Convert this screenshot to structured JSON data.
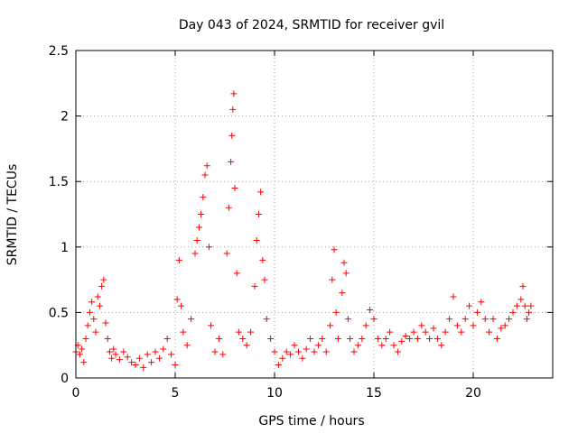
{
  "chart_data": {
    "type": "scatter",
    "title": "Day 043 of 2024, SRMTID for receiver gvil",
    "xlabel": "GPS time / hours",
    "ylabel": "SRMTID / TECUs",
    "xlim": [
      0,
      24
    ],
    "ylim": [
      0,
      2.5
    ],
    "xticks": [
      0,
      5,
      10,
      15,
      20
    ],
    "yticks": [
      0,
      0.5,
      1,
      1.5,
      2,
      2.5
    ],
    "xtick_labels": [
      "0",
      "5",
      "10",
      "15",
      "20"
    ],
    "ytick_labels": [
      "0",
      "0.5",
      "1",
      "1.5",
      "2",
      "2.5"
    ],
    "grid": true,
    "marker": "+",
    "color": "#ff0000",
    "series": [
      {
        "name": "SRMTID",
        "points": [
          [
            0.0,
            0.2
          ],
          [
            0.1,
            0.25
          ],
          [
            0.2,
            0.18
          ],
          [
            0.3,
            0.22
          ],
          [
            0.4,
            0.12
          ],
          [
            0.5,
            0.3
          ],
          [
            0.6,
            0.4
          ],
          [
            0.7,
            0.5
          ],
          [
            0.8,
            0.58
          ],
          [
            0.9,
            0.45
          ],
          [
            1.0,
            0.35
          ],
          [
            1.1,
            0.62
          ],
          [
            1.2,
            0.55
          ],
          [
            1.3,
            0.7
          ],
          [
            1.4,
            0.75
          ],
          [
            1.5,
            0.42
          ],
          [
            1.6,
            0.3
          ],
          [
            1.7,
            0.2
          ],
          [
            1.8,
            0.15
          ],
          [
            1.9,
            0.22
          ],
          [
            2.0,
            0.18
          ],
          [
            2.2,
            0.14
          ],
          [
            2.4,
            0.2
          ],
          [
            2.6,
            0.16
          ],
          [
            2.8,
            0.12
          ],
          [
            3.0,
            0.1
          ],
          [
            3.2,
            0.15
          ],
          [
            3.4,
            0.08
          ],
          [
            3.6,
            0.18
          ],
          [
            3.8,
            0.12
          ],
          [
            4.0,
            0.2
          ],
          [
            4.2,
            0.15
          ],
          [
            4.4,
            0.22
          ],
          [
            4.6,
            0.3
          ],
          [
            4.8,
            0.18
          ],
          [
            5.0,
            0.1
          ],
          [
            5.1,
            0.6
          ],
          [
            5.2,
            0.9
          ],
          [
            5.3,
            0.55
          ],
          [
            5.4,
            0.35
          ],
          [
            5.6,
            0.25
          ],
          [
            5.8,
            0.45
          ],
          [
            6.0,
            0.95
          ],
          [
            6.1,
            1.05
          ],
          [
            6.2,
            1.15
          ],
          [
            6.3,
            1.25
          ],
          [
            6.4,
            1.38
          ],
          [
            6.5,
            1.55
          ],
          [
            6.6,
            1.62
          ],
          [
            6.7,
            1.0
          ],
          [
            6.8,
            0.4
          ],
          [
            7.0,
            0.2
          ],
          [
            7.2,
            0.3
          ],
          [
            7.4,
            0.18
          ],
          [
            7.6,
            0.95
          ],
          [
            7.7,
            1.3
          ],
          [
            7.8,
            1.65
          ],
          [
            7.85,
            1.85
          ],
          [
            7.9,
            2.05
          ],
          [
            7.95,
            2.17
          ],
          [
            8.0,
            1.45
          ],
          [
            8.1,
            0.8
          ],
          [
            8.2,
            0.35
          ],
          [
            8.4,
            0.3
          ],
          [
            8.6,
            0.25
          ],
          [
            8.8,
            0.35
          ],
          [
            9.0,
            0.7
          ],
          [
            9.1,
            1.05
          ],
          [
            9.2,
            1.25
          ],
          [
            9.3,
            1.42
          ],
          [
            9.4,
            0.9
          ],
          [
            9.5,
            0.75
          ],
          [
            9.6,
            0.45
          ],
          [
            9.8,
            0.3
          ],
          [
            10.0,
            0.2
          ],
          [
            10.2,
            0.1
          ],
          [
            10.4,
            0.15
          ],
          [
            10.6,
            0.2
          ],
          [
            10.8,
            0.18
          ],
          [
            11.0,
            0.25
          ],
          [
            11.2,
            0.2
          ],
          [
            11.4,
            0.15
          ],
          [
            11.6,
            0.22
          ],
          [
            11.8,
            0.3
          ],
          [
            12.0,
            0.2
          ],
          [
            12.2,
            0.25
          ],
          [
            12.4,
            0.3
          ],
          [
            12.6,
            0.2
          ],
          [
            12.8,
            0.4
          ],
          [
            12.9,
            0.75
          ],
          [
            13.0,
            0.98
          ],
          [
            13.1,
            0.5
          ],
          [
            13.2,
            0.3
          ],
          [
            13.4,
            0.65
          ],
          [
            13.5,
            0.88
          ],
          [
            13.6,
            0.8
          ],
          [
            13.7,
            0.45
          ],
          [
            13.8,
            0.3
          ],
          [
            14.0,
            0.2
          ],
          [
            14.2,
            0.25
          ],
          [
            14.4,
            0.3
          ],
          [
            14.6,
            0.4
          ],
          [
            14.8,
            0.52
          ],
          [
            15.0,
            0.45
          ],
          [
            15.2,
            0.3
          ],
          [
            15.4,
            0.25
          ],
          [
            15.6,
            0.3
          ],
          [
            15.8,
            0.35
          ],
          [
            16.0,
            0.25
          ],
          [
            16.2,
            0.2
          ],
          [
            16.4,
            0.28
          ],
          [
            16.6,
            0.32
          ],
          [
            16.8,
            0.3
          ],
          [
            17.0,
            0.35
          ],
          [
            17.2,
            0.3
          ],
          [
            17.4,
            0.4
          ],
          [
            17.6,
            0.35
          ],
          [
            17.8,
            0.3
          ],
          [
            18.0,
            0.38
          ],
          [
            18.2,
            0.3
          ],
          [
            18.4,
            0.25
          ],
          [
            18.6,
            0.35
          ],
          [
            18.8,
            0.45
          ],
          [
            19.0,
            0.62
          ],
          [
            19.2,
            0.4
          ],
          [
            19.4,
            0.35
          ],
          [
            19.6,
            0.45
          ],
          [
            19.8,
            0.55
          ],
          [
            20.0,
            0.4
          ],
          [
            20.2,
            0.5
          ],
          [
            20.4,
            0.58
          ],
          [
            20.6,
            0.45
          ],
          [
            20.8,
            0.35
          ],
          [
            21.0,
            0.45
          ],
          [
            21.2,
            0.3
          ],
          [
            21.4,
            0.38
          ],
          [
            21.6,
            0.4
          ],
          [
            21.8,
            0.45
          ],
          [
            22.0,
            0.5
          ],
          [
            22.2,
            0.55
          ],
          [
            22.4,
            0.6
          ],
          [
            22.5,
            0.7
          ],
          [
            22.6,
            0.55
          ],
          [
            22.7,
            0.45
          ],
          [
            22.8,
            0.5
          ],
          [
            22.9,
            0.55
          ]
        ]
      }
    ]
  }
}
